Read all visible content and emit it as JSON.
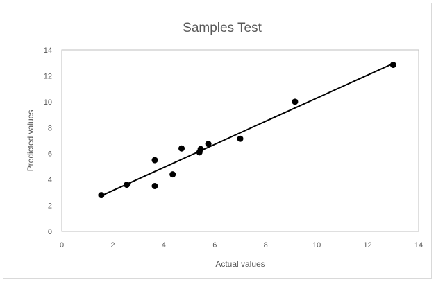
{
  "chart_data": {
    "type": "scatter",
    "title": "Samples Test",
    "xlabel": "Actual values",
    "ylabel": "Predicted values",
    "xlim": [
      0,
      14
    ],
    "ylim": [
      0,
      14
    ],
    "xticks": [
      "0",
      "2",
      "4",
      "6",
      "8",
      "10",
      "12",
      "14"
    ],
    "yticks": [
      "0",
      "2",
      "4",
      "6",
      "8",
      "10",
      "12",
      "14"
    ],
    "grid": false,
    "legend": "none",
    "colors": {
      "points": "#000000",
      "trendline": "#000000",
      "axis": "#bfbfbf",
      "text": "#595959"
    },
    "series": [
      {
        "values_xy": [
          [
            1.55,
            2.8
          ],
          [
            2.55,
            3.6
          ],
          [
            3.65,
            3.5
          ],
          [
            3.65,
            5.5
          ],
          [
            4.35,
            4.4
          ],
          [
            4.7,
            6.4
          ],
          [
            5.4,
            6.1
          ],
          [
            5.45,
            6.35
          ],
          [
            5.75,
            6.75
          ],
          [
            7.0,
            7.15
          ],
          [
            9.15,
            10.0
          ],
          [
            13.0,
            12.85
          ]
        ]
      }
    ],
    "trendline": {
      "type": "linear",
      "from": [
        1.55,
        2.75
      ],
      "to": [
        13.0,
        12.95
      ]
    }
  }
}
